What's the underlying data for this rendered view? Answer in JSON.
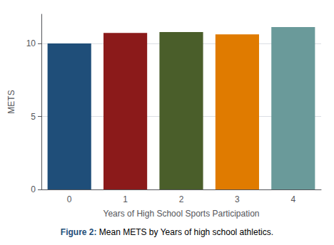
{
  "chart_data": {
    "type": "bar",
    "categories": [
      0,
      1,
      2,
      3,
      4
    ],
    "values": [
      10.0,
      10.72,
      10.78,
      10.62,
      11.12
    ],
    "colors": [
      "#1f4e79",
      "#8b1a1a",
      "#4a5e2a",
      "#e07b00",
      "#6a9a9a"
    ],
    "xlabel": "Years of High School Sports Participation",
    "ylabel": "METS",
    "ylim": [
      0,
      12.0
    ],
    "yticks": [
      0,
      5,
      10
    ],
    "grid": true,
    "annotations": [
      {
        "text": "Figure 2:",
        "color": "#1f4e79"
      },
      {
        "text": " Mean METS by Years of high school athletics.",
        "color": "#000000"
      }
    ]
  }
}
